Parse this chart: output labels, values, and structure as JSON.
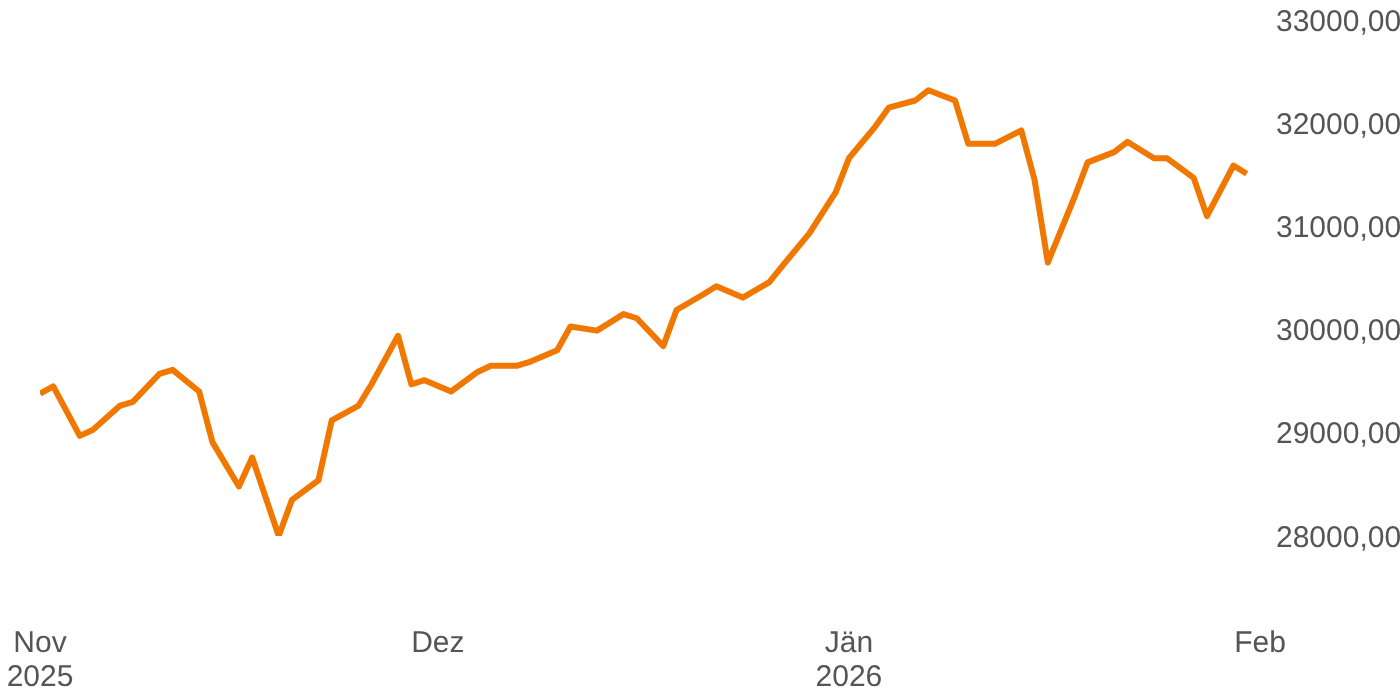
{
  "chart_data": {
    "type": "line",
    "x": [
      "2025-11-01",
      "2025-11-02",
      "2025-11-04",
      "2025-11-05",
      "2025-11-07",
      "2025-11-08",
      "2025-11-10",
      "2025-11-11",
      "2025-11-13",
      "2025-11-14",
      "2025-11-16",
      "2025-11-17",
      "2025-11-19",
      "2025-11-20",
      "2025-11-22",
      "2025-11-23",
      "2025-11-25",
      "2025-11-26",
      "2025-11-28",
      "2025-11-29",
      "2025-11-30",
      "2025-12-02",
      "2025-12-04",
      "2025-12-05",
      "2025-12-07",
      "2025-12-08",
      "2025-12-10",
      "2025-12-11",
      "2025-12-13",
      "2025-12-15",
      "2025-12-16",
      "2025-12-18",
      "2025-12-19",
      "2025-12-21",
      "2025-12-22",
      "2025-12-24",
      "2025-12-26",
      "2025-12-27",
      "2025-12-29",
      "2025-12-31",
      "2026-01-01",
      "2026-01-03",
      "2026-01-04",
      "2026-01-06",
      "2026-01-07",
      "2026-01-09",
      "2026-01-10",
      "2026-01-12",
      "2026-01-14",
      "2026-01-15",
      "2026-01-16",
      "2026-01-18",
      "2026-01-19",
      "2026-01-21",
      "2026-01-22",
      "2026-01-24",
      "2026-01-25",
      "2026-01-27",
      "2026-01-28",
      "2026-01-30",
      "2026-01-31"
    ],
    "series": [
      {
        "color": "#f07800",
        "values": [
          29380,
          29450,
          28970,
          29030,
          29260,
          29300,
          29570,
          29610,
          29400,
          28910,
          28480,
          28760,
          28000,
          28350,
          28540,
          29120,
          29260,
          29470,
          29940,
          29470,
          29510,
          29400,
          29590,
          29650,
          29650,
          29690,
          29800,
          30030,
          29990,
          30150,
          30110,
          29840,
          30190,
          30340,
          30420,
          30310,
          30460,
          30620,
          30930,
          31330,
          31660,
          31970,
          32150,
          32220,
          32320,
          32220,
          31800,
          31800,
          31930,
          31450,
          30650,
          31280,
          31620,
          31720,
          31820,
          31660,
          31660,
          31470,
          31100,
          31590,
          31510
        ]
      }
    ],
    "xlim": [
      "2025-11-01",
      "2026-02-01"
    ],
    "xticks": [
      {
        "value": "2025-11-01",
        "label": "Nov\n2025"
      },
      {
        "value": "2025-12-01",
        "label": "Dez"
      },
      {
        "value": "2026-01-01",
        "label": "Jän\n2026"
      },
      {
        "value": "2026-02-01",
        "label": "Feb"
      }
    ],
    "ylim": [
      28000,
      33000
    ],
    "yticks": [
      {
        "value": 28000,
        "label": "28000,00"
      },
      {
        "value": 29000,
        "label": "29000,00"
      },
      {
        "value": 30000,
        "label": "30000,00"
      },
      {
        "value": 31000,
        "label": "31000,00"
      },
      {
        "value": 32000,
        "label": "32000,00"
      },
      {
        "value": 33000,
        "label": "33000,00"
      }
    ],
    "grid": false,
    "legend": false,
    "marker": "none",
    "line_style": "solid"
  }
}
